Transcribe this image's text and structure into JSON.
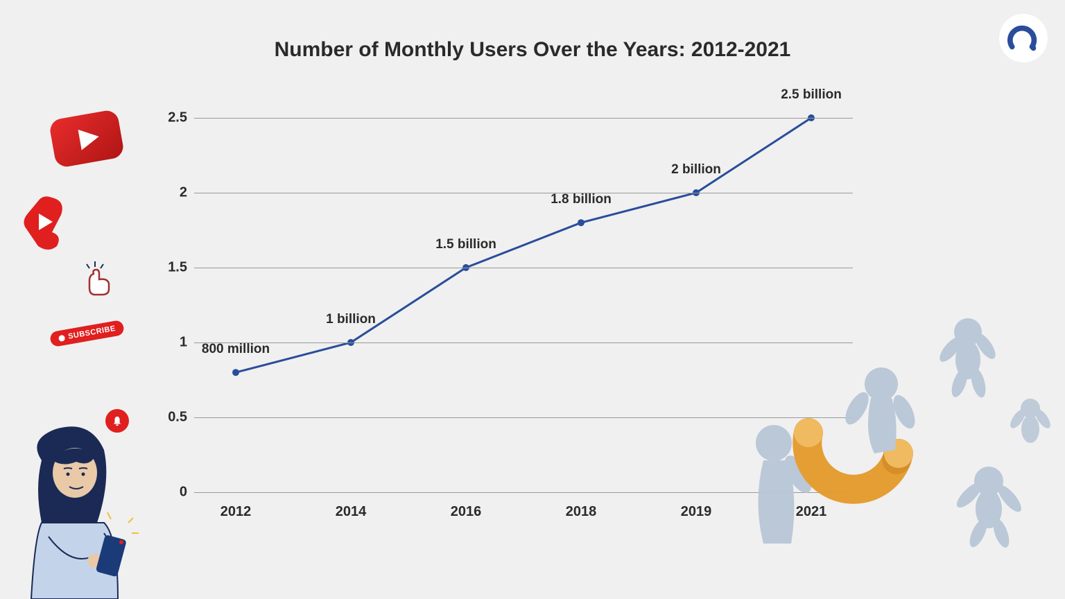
{
  "title": "Number of Monthly Users Over the Years: 2012-2021",
  "chart": {
    "type": "line",
    "x_categories": [
      "2012",
      "2014",
      "2016",
      "2018",
      "2019",
      "2021"
    ],
    "y_values": [
      0.8,
      1.0,
      1.5,
      1.8,
      2.0,
      2.5
    ],
    "point_labels": [
      "800 million",
      "1 billion",
      "1.5 billion",
      "1.8 billion",
      "2 billion",
      "2.5 billion"
    ],
    "line_color": "#2a4d9b",
    "marker_color": "#2a4d9b",
    "marker_size": 6,
    "line_width": 3,
    "ylim": [
      0,
      2.5
    ],
    "ytick_step": 0.5,
    "y_ticks": [
      "0",
      "0.5",
      "1",
      "1.5",
      "2",
      "2.5"
    ],
    "grid_color": "#999999",
    "background_color": "#f0f0f0",
    "title_fontsize": 30,
    "tick_fontsize": 20,
    "label_fontsize": 19,
    "data_label_offset_y": -22
  },
  "decor": {
    "youtube_color": "#d81f1f",
    "subscribe_text": "SUBSCRIBE",
    "bell_color": "#e01f1f",
    "person_hair_color": "#1a2a55",
    "person_shirt_color": "#c3d3ea",
    "person_skin_color": "#e9c9a8",
    "phone_color": "#1a3a78",
    "magnet_color": "#e59a2a",
    "figure_color": "#b8c6d6",
    "logo_color": "#2a4d9b"
  }
}
